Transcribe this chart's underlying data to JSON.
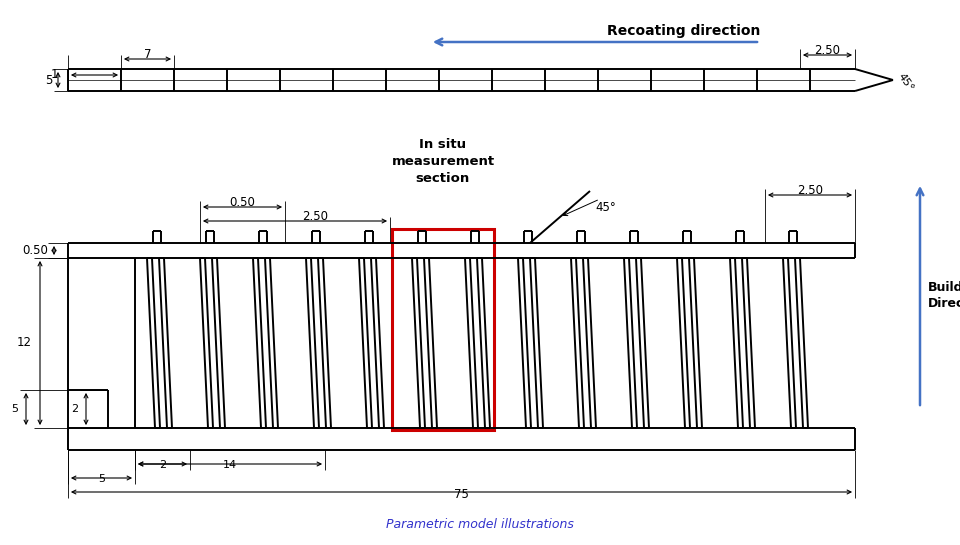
{
  "bg_color": "#ffffff",
  "lc": "#000000",
  "red": "#cc0000",
  "blue": "#4472c4",
  "title": "Parametric model illustrations",
  "title_color": "#3333cc",
  "dim_7": "7",
  "dim_1": "1",
  "dim_5t": "5",
  "dim_250r": "2.50",
  "dim_45t": "45°",
  "dim_050h": "0.50",
  "dim_250h": "2.50",
  "dim_050v": "0.50",
  "dim_12": "12",
  "dim_2a": "2",
  "dim_5a": "5",
  "dim_2b": "2",
  "dim_5b": "5",
  "dim_14": "14",
  "dim_75": "75",
  "dim_45e": "45°",
  "dim_250e": "2.50",
  "recoating": "Recoating direction",
  "build": "Build\nDirect...",
  "insitu": "In situ\nmeasurement\nsection"
}
